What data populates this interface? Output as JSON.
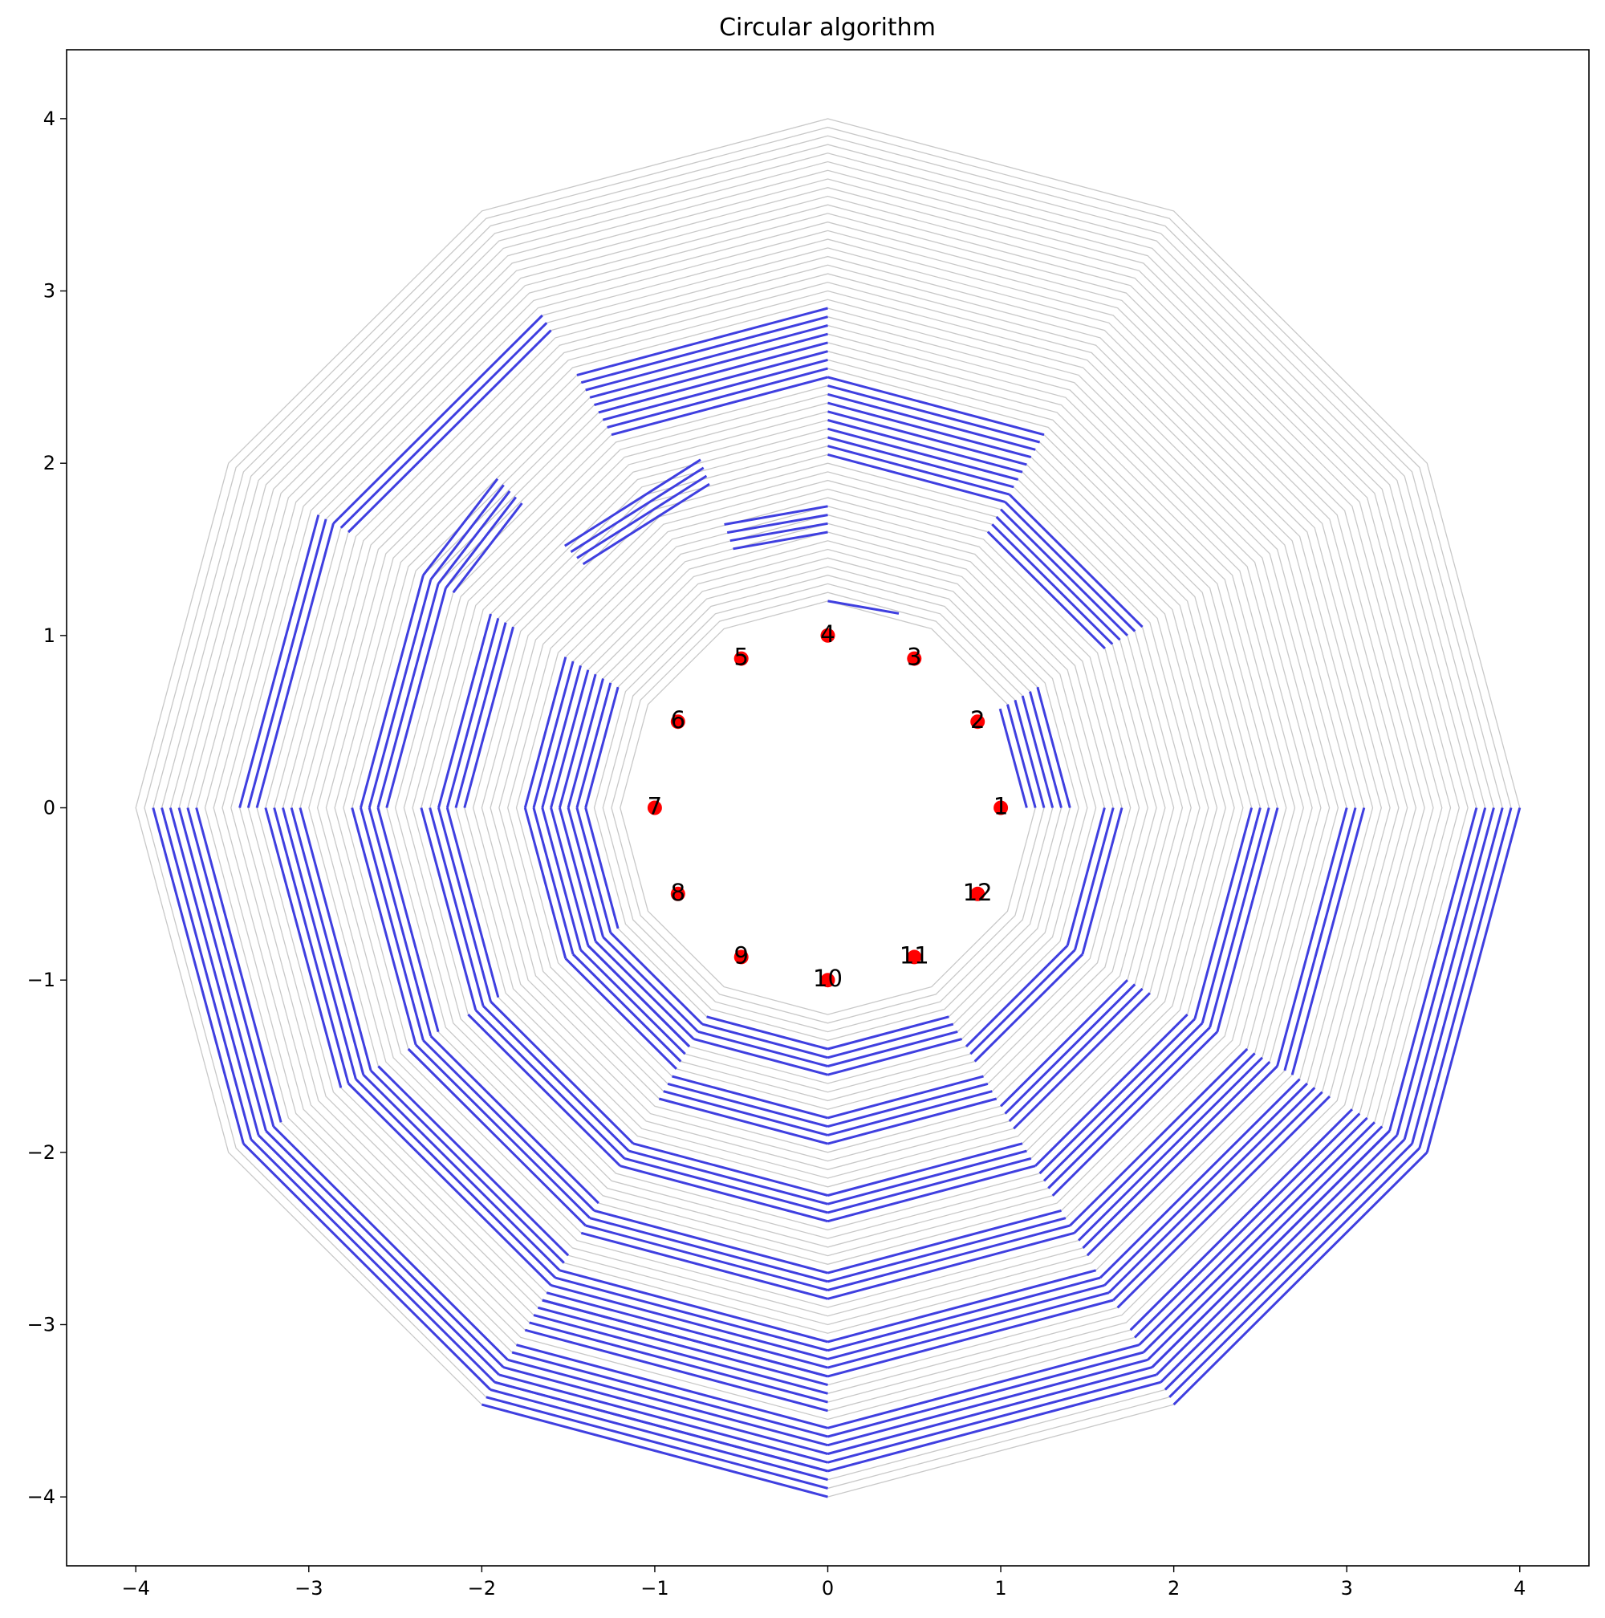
{
  "chart_data": {
    "type": "line",
    "title": "Circular algorithm",
    "xlabel": "",
    "ylabel": "",
    "xlim": [
      -4.4,
      4.4
    ],
    "ylim": [
      -4.4,
      4.4
    ],
    "xticks": [
      -4,
      -3,
      -2,
      -1,
      0,
      1,
      2,
      3,
      4
    ],
    "yticks": [
      -4,
      -3,
      -2,
      -1,
      0,
      1,
      2,
      3,
      4
    ],
    "xtick_labels": [
      "−4",
      "−3",
      "−2",
      "−1",
      "0",
      "1",
      "2",
      "3",
      "4"
    ],
    "ytick_labels": [
      "−4",
      "−3",
      "−2",
      "−1",
      "0",
      "1",
      "2",
      "3",
      "4"
    ],
    "grid": false,
    "rings": {
      "sides": 12,
      "r_start": 1.2,
      "r_end": 4.0,
      "r_step": 0.05,
      "color": "#c8c8c8"
    },
    "highlight_color": "#3f3fe0",
    "highlights": [
      {
        "r": [
          1.2,
          1.2
        ],
        "from": 90,
        "to": 70
      },
      {
        "r": [
          1.4,
          1.55
        ],
        "from": 180,
        "to": 150
      },
      {
        "r": [
          1.4,
          1.55
        ],
        "from": 180,
        "to": 210
      },
      {
        "r": [
          1.6,
          1.75
        ],
        "from": 90,
        "to": 110
      },
      {
        "r": [
          1.15,
          1.4
        ],
        "from": 0,
        "to": 30
      },
      {
        "r": [
          1.6,
          1.7
        ],
        "from": 0,
        "to": -30
      },
      {
        "r": [
          1.6,
          1.7
        ],
        "from": -30,
        "to": -60
      },
      {
        "r": [
          1.4,
          1.55
        ],
        "from": -60,
        "to": -90
      },
      {
        "r": [
          1.4,
          1.55
        ],
        "from": -90,
        "to": -120
      },
      {
        "r": [
          1.45,
          1.6
        ],
        "from": -120,
        "to": -150
      },
      {
        "r": [
          1.85,
          2.1
        ],
        "from": 30,
        "to": 60
      },
      {
        "r": [
          2.05,
          2.5
        ],
        "from": 90,
        "to": 60
      },
      {
        "r": [
          2.0,
          2.15
        ],
        "from": 110,
        "to": 135
      },
      {
        "r": [
          1.6,
          1.75
        ],
        "from": 150,
        "to": 180
      },
      {
        "r": [
          1.6,
          1.75
        ],
        "from": 180,
        "to": 210
      },
      {
        "r": [
          1.6,
          1.75
        ],
        "from": 210,
        "to": 240
      },
      {
        "r": [
          1.8,
          1.95
        ],
        "from": -60,
        "to": -90
      },
      {
        "r": [
          1.8,
          1.95
        ],
        "from": -90,
        "to": -120
      },
      {
        "r": [
          2.0,
          2.15
        ],
        "from": -30,
        "to": -60
      },
      {
        "r": [
          2.25,
          2.4
        ],
        "from": -120,
        "to": -150
      },
      {
        "r": [
          2.1,
          2.25
        ],
        "from": 150,
        "to": 180
      },
      {
        "r": [
          2.2,
          2.35
        ],
        "from": 180,
        "to": 210
      },
      {
        "r": [
          2.25,
          2.4
        ],
        "from": -90,
        "to": -120
      },
      {
        "r": [
          2.25,
          2.4
        ],
        "from": -60,
        "to": -90
      },
      {
        "r": [
          2.4,
          2.6
        ],
        "from": -30,
        "to": -60
      },
      {
        "r": [
          2.5,
          2.9
        ],
        "from": 90,
        "to": 120
      },
      {
        "r": [
          2.5,
          2.7
        ],
        "from": 135,
        "to": 150
      },
      {
        "r": [
          2.55,
          2.7
        ],
        "from": 150,
        "to": 180
      },
      {
        "r": [
          2.6,
          2.75
        ],
        "from": 180,
        "to": 210
      },
      {
        "r": [
          2.65,
          2.8
        ],
        "from": 210,
        "to": 240
      },
      {
        "r": [
          2.7,
          2.85
        ],
        "from": -90,
        "to": -120
      },
      {
        "r": [
          2.7,
          2.85
        ],
        "from": -60,
        "to": -90
      },
      {
        "r": [
          2.8,
          3.0
        ],
        "from": -30,
        "to": -60
      },
      {
        "r": [
          2.45,
          2.6
        ],
        "from": 0,
        "to": -30
      },
      {
        "r": [
          3.1,
          3.3
        ],
        "from": -90,
        "to": -120
      },
      {
        "r": [
          3.1,
          3.3
        ],
        "from": -60,
        "to": -90
      },
      {
        "r": [
          3.0,
          3.2
        ],
        "from": 210,
        "to": 240
      },
      {
        "r": [
          3.3,
          3.5
        ],
        "from": 240,
        "to": 270
      },
      {
        "r": [
          3.05,
          3.25
        ],
        "from": 180,
        "to": 210
      },
      {
        "r": [
          3.2,
          3.3
        ],
        "from": 150,
        "to": 120
      },
      {
        "r": [
          3.3,
          3.4
        ],
        "from": 150,
        "to": 180
      },
      {
        "r": [
          3.15,
          3.35
        ],
        "from": -30,
        "to": -60
      },
      {
        "r": [
          3.65,
          3.9
        ],
        "from": 180,
        "to": 210
      },
      {
        "r": [
          3.7,
          3.9
        ],
        "from": 210,
        "to": 240
      },
      {
        "r": [
          3.6,
          3.85
        ],
        "from": -90,
        "to": -120
      },
      {
        "r": [
          3.85,
          4.0
        ],
        "from": -120,
        "to": -90
      },
      {
        "r": [
          3.6,
          3.85
        ],
        "from": -60,
        "to": -90
      },
      {
        "r": [
          3.5,
          3.75
        ],
        "from": -30,
        "to": -60
      },
      {
        "r": [
          3.75,
          4.0
        ],
        "from": 0,
        "to": -30
      },
      {
        "r": [
          3.0,
          3.1
        ],
        "from": 0,
        "to": -30
      },
      {
        "r": [
          3.75,
          4.0
        ],
        "from": -30,
        "to": -60
      }
    ],
    "points": [
      {
        "label": "1",
        "x": 1.0,
        "y": 0.0
      },
      {
        "label": "2",
        "x": 0.866,
        "y": 0.5
      },
      {
        "label": "3",
        "x": 0.5,
        "y": 0.866
      },
      {
        "label": "4",
        "x": 0.0,
        "y": 1.0
      },
      {
        "label": "5",
        "x": -0.5,
        "y": 0.866
      },
      {
        "label": "6",
        "x": -0.866,
        "y": 0.5
      },
      {
        "label": "7",
        "x": -1.0,
        "y": 0.0
      },
      {
        "label": "8",
        "x": -0.866,
        "y": -0.5
      },
      {
        "label": "9",
        "x": -0.5,
        "y": -0.866
      },
      {
        "label": "10",
        "x": 0.0,
        "y": -1.0
      },
      {
        "label": "11",
        "x": 0.5,
        "y": -0.866
      },
      {
        "label": "12",
        "x": 0.866,
        "y": -0.5
      }
    ],
    "point_color": "#ff0000"
  }
}
